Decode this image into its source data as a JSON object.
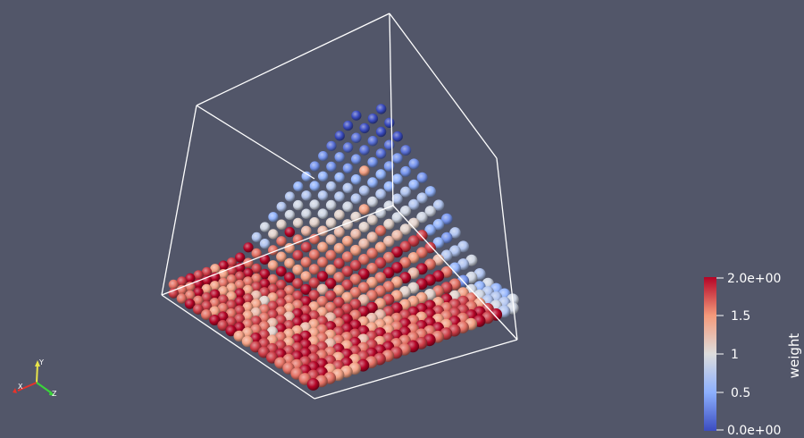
{
  "scalar_bar": {
    "title": "weight",
    "labels": [
      "2.0e+00",
      "1.5",
      "1",
      "0.5",
      "0.0e+00"
    ],
    "range": [
      0,
      2
    ],
    "colormap": "cool to warm",
    "low_color": "#3b4cc0",
    "mid_color": "#dddddd",
    "high_color": "#b40426"
  },
  "orientation_axes": {
    "x_label": "X",
    "y_label": "Y",
    "z_label": "Z",
    "x_color": "#e8322a",
    "y_color": "#e8e44a",
    "z_color": "#3ad63a"
  },
  "colors": {
    "background": "#525669",
    "outline": "#ffffff"
  }
}
